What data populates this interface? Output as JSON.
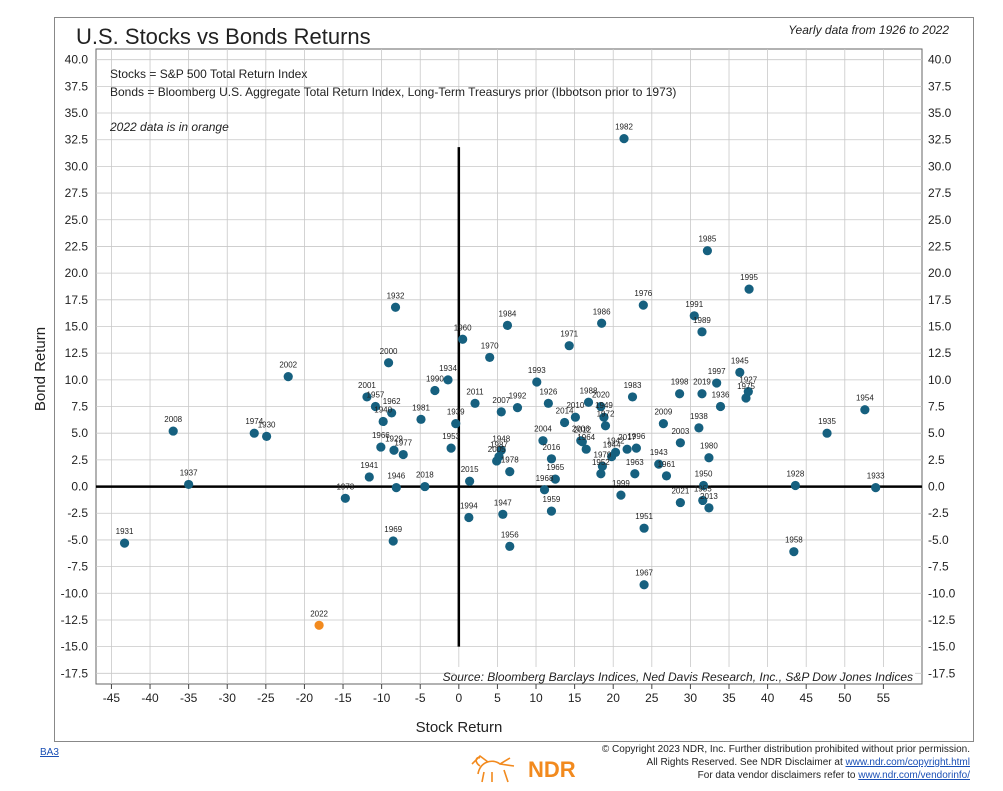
{
  "page": {
    "title": "U.S. Stocks vs Bonds Returns",
    "subtitle": "Yearly data from 1926 to 2022",
    "footer_code": "BA3",
    "copyright_line1": "© Copyright 2023 NDR, Inc. Further distribution prohibited without prior permission.",
    "copyright_line2_pre": "All Rights Reserved. See NDR Disclaimer at ",
    "copyright_link1": "www.ndr.com/copyright.html",
    "copyright_line3_pre": "For data vendor disclaimers refer to ",
    "copyright_link2": "www.ndr.com/vendorinfo/",
    "logo_text": "NDR"
  },
  "chart_data": {
    "type": "scatter",
    "title": "U.S. Stocks vs Bonds Returns",
    "subtitle": "Yearly data from 1926 to 2022",
    "xlabel": "Stock Return",
    "ylabel": "Bond Return",
    "xlim": [
      -47,
      60
    ],
    "ylim": [
      -18.5,
      41
    ],
    "x_ticks": [
      -45,
      -40,
      -35,
      -30,
      -25,
      -20,
      -15,
      -10,
      -5,
      0,
      5,
      10,
      15,
      20,
      25,
      30,
      35,
      40,
      45,
      50,
      55
    ],
    "y_ticks": [
      -17.5,
      -15.0,
      -12.5,
      -10.0,
      -7.5,
      -5.0,
      -2.5,
      0.0,
      2.5,
      5.0,
      7.5,
      10.0,
      12.5,
      15.0,
      17.5,
      20.0,
      22.5,
      25.0,
      27.5,
      30.0,
      32.5,
      35.0,
      37.5,
      40.0
    ],
    "grid": true,
    "notes": [
      "Stocks = S&P 500 Total Return Index",
      "Bonds = Bloomberg U.S. Aggregate Total Return Index, Long-Term Treasurys prior (Ibbotson prior to 1973)",
      "2022 data is in orange"
    ],
    "source": "Source:  Bloomberg Barclays Indices, Ned Davis Research, Inc., S&P Dow Jones Indices",
    "colors": {
      "point": "#16607f",
      "highlight": "#f28a1e",
      "grid": "#c8c8c8",
      "axis": "#000000"
    },
    "points": [
      {
        "label": "1926",
        "x": 11.6,
        "y": 7.8
      },
      {
        "label": "1927",
        "x": 37.5,
        "y": 8.9
      },
      {
        "label": "1928",
        "x": 43.6,
        "y": 0.1
      },
      {
        "label": "1929",
        "x": -8.4,
        "y": 3.4
      },
      {
        "label": "1930",
        "x": -24.9,
        "y": 4.7
      },
      {
        "label": "1931",
        "x": -43.3,
        "y": -5.3
      },
      {
        "label": "1932",
        "x": -8.2,
        "y": 16.8
      },
      {
        "label": "1933",
        "x": 54.0,
        "y": -0.1
      },
      {
        "label": "1934",
        "x": -1.4,
        "y": 10.0
      },
      {
        "label": "1935",
        "x": 47.7,
        "y": 5.0
      },
      {
        "label": "1936",
        "x": 33.9,
        "y": 7.5
      },
      {
        "label": "1937",
        "x": -35.0,
        "y": 0.2
      },
      {
        "label": "1938",
        "x": 31.1,
        "y": 5.5
      },
      {
        "label": "1939",
        "x": -0.4,
        "y": 5.9
      },
      {
        "label": "1940",
        "x": -9.8,
        "y": 6.1
      },
      {
        "label": "1941",
        "x": -11.6,
        "y": 0.9
      },
      {
        "label": "1942",
        "x": 20.3,
        "y": 3.2
      },
      {
        "label": "1943",
        "x": 25.9,
        "y": 2.1
      },
      {
        "label": "1944",
        "x": 19.8,
        "y": 2.8
      },
      {
        "label": "1945",
        "x": 36.4,
        "y": 10.7
      },
      {
        "label": "1946",
        "x": -8.1,
        "y": -0.1
      },
      {
        "label": "1947",
        "x": 5.7,
        "y": -2.6
      },
      {
        "label": "1948",
        "x": 5.5,
        "y": 3.4
      },
      {
        "label": "1949",
        "x": 18.8,
        "y": 6.5
      },
      {
        "label": "1950",
        "x": 31.7,
        "y": 0.1
      },
      {
        "label": "1951",
        "x": 24.0,
        "y": -3.9
      },
      {
        "label": "1952",
        "x": 18.4,
        "y": 1.2
      },
      {
        "label": "1953",
        "x": -1.0,
        "y": 3.6
      },
      {
        "label": "1954",
        "x": 52.6,
        "y": 7.2
      },
      {
        "label": "1955",
        "x": 31.6,
        "y": -1.3
      },
      {
        "label": "1956",
        "x": 6.6,
        "y": -5.6
      },
      {
        "label": "1957",
        "x": -10.8,
        "y": 7.5
      },
      {
        "label": "1958",
        "x": 43.4,
        "y": -6.1
      },
      {
        "label": "1959",
        "x": 12.0,
        "y": -2.3
      },
      {
        "label": "1960",
        "x": 0.5,
        "y": 13.8
      },
      {
        "label": "1961",
        "x": 26.9,
        "y": 1.0
      },
      {
        "label": "1962",
        "x": -8.7,
        "y": 6.9
      },
      {
        "label": "1963",
        "x": 22.8,
        "y": 1.2
      },
      {
        "label": "1964",
        "x": 16.5,
        "y": 3.5
      },
      {
        "label": "1965",
        "x": 12.5,
        "y": 0.7
      },
      {
        "label": "1966",
        "x": -10.1,
        "y": 3.7
      },
      {
        "label": "1967",
        "x": 24.0,
        "y": -9.2
      },
      {
        "label": "1968",
        "x": 11.1,
        "y": -0.3
      },
      {
        "label": "1969",
        "x": -8.5,
        "y": -5.1
      },
      {
        "label": "1970",
        "x": 4.0,
        "y": 12.1
      },
      {
        "label": "1971",
        "x": 14.3,
        "y": 13.2
      },
      {
        "label": "1972",
        "x": 19.0,
        "y": 5.7
      },
      {
        "label": "1973",
        "x": -14.7,
        "y": -1.1
      },
      {
        "label": "1974",
        "x": -26.5,
        "y": 5.0
      },
      {
        "label": "1975",
        "x": 37.2,
        "y": 8.3
      },
      {
        "label": "1976",
        "x": 23.9,
        "y": 17.0
      },
      {
        "label": "1977",
        "x": -7.2,
        "y": 3.0
      },
      {
        "label": "1978",
        "x": 6.6,
        "y": 1.4
      },
      {
        "label": "1979",
        "x": 18.6,
        "y": 1.9
      },
      {
        "label": "1980",
        "x": 32.4,
        "y": 2.7
      },
      {
        "label": "1981",
        "x": -4.9,
        "y": 6.3
      },
      {
        "label": "1982",
        "x": 21.4,
        "y": 32.6
      },
      {
        "label": "1983",
        "x": 22.5,
        "y": 8.4
      },
      {
        "label": "1984",
        "x": 6.3,
        "y": 15.1
      },
      {
        "label": "1985",
        "x": 32.2,
        "y": 22.1
      },
      {
        "label": "1986",
        "x": 18.5,
        "y": 15.3
      },
      {
        "label": "1987",
        "x": 5.2,
        "y": 2.8
      },
      {
        "label": "1988",
        "x": 16.8,
        "y": 7.9
      },
      {
        "label": "1989",
        "x": 31.5,
        "y": 14.5
      },
      {
        "label": "1990",
        "x": -3.1,
        "y": 9.0
      },
      {
        "label": "1991",
        "x": 30.5,
        "y": 16.0
      },
      {
        "label": "1992",
        "x": 7.6,
        "y": 7.4
      },
      {
        "label": "1993",
        "x": 10.1,
        "y": 9.8
      },
      {
        "label": "1994",
        "x": 1.3,
        "y": -2.9
      },
      {
        "label": "1995",
        "x": 37.6,
        "y": 18.5
      },
      {
        "label": "1996",
        "x": 23.0,
        "y": 3.6
      },
      {
        "label": "1997",
        "x": 33.4,
        "y": 9.7
      },
      {
        "label": "1998",
        "x": 28.6,
        "y": 8.7
      },
      {
        "label": "1999",
        "x": 21.0,
        "y": -0.8
      },
      {
        "label": "2000",
        "x": -9.1,
        "y": 11.6
      },
      {
        "label": "2001",
        "x": -11.9,
        "y": 8.4
      },
      {
        "label": "2002",
        "x": -22.1,
        "y": 10.3
      },
      {
        "label": "2003",
        "x": 28.7,
        "y": 4.1
      },
      {
        "label": "2004",
        "x": 10.9,
        "y": 4.3
      },
      {
        "label": "2005",
        "x": 4.9,
        "y": 2.4
      },
      {
        "label": "2006",
        "x": 15.8,
        "y": 4.3
      },
      {
        "label": "2007",
        "x": 5.5,
        "y": 7.0
      },
      {
        "label": "2008",
        "x": -37.0,
        "y": 5.2
      },
      {
        "label": "2009",
        "x": 26.5,
        "y": 5.9
      },
      {
        "label": "2010",
        "x": 15.1,
        "y": 6.5
      },
      {
        "label": "2011",
        "x": 2.1,
        "y": 7.8
      },
      {
        "label": "2012",
        "x": 16.0,
        "y": 4.2
      },
      {
        "label": "2013",
        "x": 32.4,
        "y": -2.0
      },
      {
        "label": "2014",
        "x": 13.7,
        "y": 6.0
      },
      {
        "label": "2015",
        "x": 1.4,
        "y": 0.5
      },
      {
        "label": "2016",
        "x": 12.0,
        "y": 2.6
      },
      {
        "label": "2017",
        "x": 21.8,
        "y": 3.5
      },
      {
        "label": "2018",
        "x": -4.4,
        "y": 0.0
      },
      {
        "label": "2019",
        "x": 31.5,
        "y": 8.7
      },
      {
        "label": "2020",
        "x": 18.4,
        "y": 7.5
      },
      {
        "label": "2021",
        "x": 28.7,
        "y": -1.5
      },
      {
        "label": "2022",
        "x": -18.1,
        "y": -13.0,
        "highlight": true
      }
    ]
  }
}
